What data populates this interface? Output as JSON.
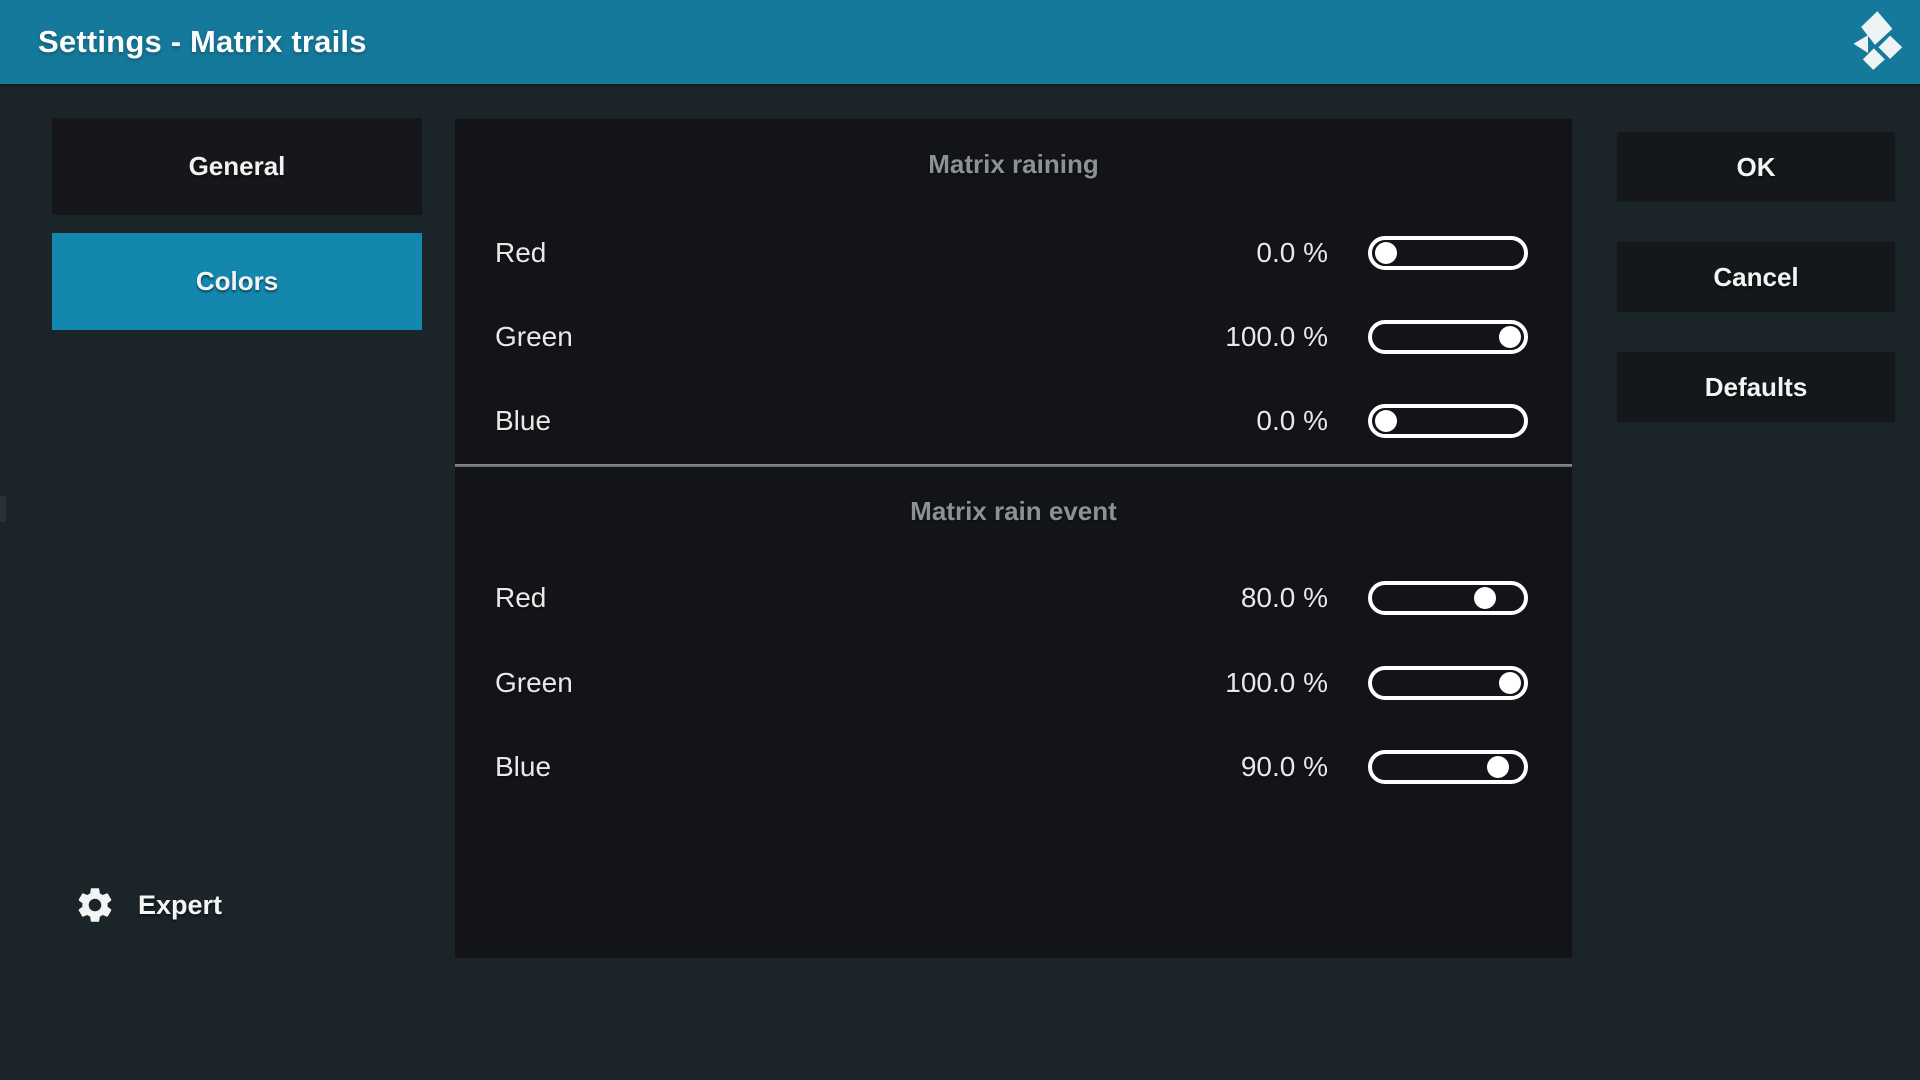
{
  "header": {
    "title": "Settings - Matrix trails",
    "logo_icon": "kodi-logo"
  },
  "sidebar": {
    "categories": [
      {
        "label": "General",
        "selected": false
      },
      {
        "label": "Colors",
        "selected": true
      }
    ],
    "level": {
      "label": "Expert",
      "icon": "gear-icon"
    }
  },
  "panel": {
    "sections": [
      {
        "title": "Matrix raining",
        "settings": [
          {
            "label": "Red",
            "value": "0.0 %",
            "percent": 0
          },
          {
            "label": "Green",
            "value": "100.0 %",
            "percent": 100
          },
          {
            "label": "Blue",
            "value": "0.0 %",
            "percent": 0
          }
        ]
      },
      {
        "title": "Matrix rain event",
        "settings": [
          {
            "label": "Red",
            "value": "80.0 %",
            "percent": 80
          },
          {
            "label": "Green",
            "value": "100.0 %",
            "percent": 100
          },
          {
            "label": "Blue",
            "value": "90.0 %",
            "percent": 90
          }
        ]
      }
    ]
  },
  "actions": {
    "ok": "OK",
    "cancel": "Cancel",
    "defaults": "Defaults"
  },
  "colors": {
    "header_bar": "#15799b",
    "selected_category": "#1387ad",
    "page_background": "#1b2429",
    "panel_background": "#121417",
    "button_background": "#15181b",
    "section_title_text": "#8e9193",
    "label_text": "#e7e9e9",
    "slider_white": "#ffffff"
  }
}
